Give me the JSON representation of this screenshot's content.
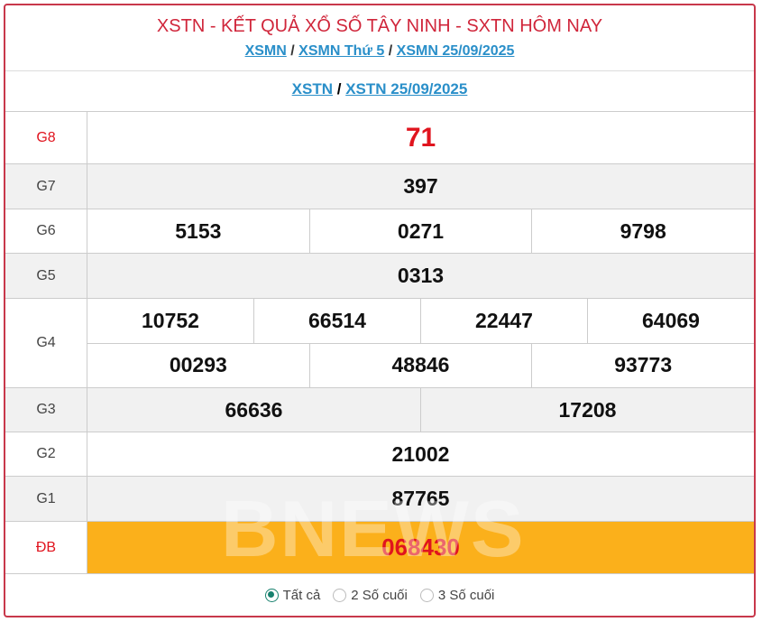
{
  "header": {
    "title": "XSTN - KẾT QUẢ XỔ SỐ TÂY NINH - SXTN HÔM NAY",
    "links": [
      "XSMN",
      "XSMN Thứ 5",
      "XSMN 25/09/2025"
    ],
    "sub_links": [
      "XSTN",
      "XSTN 25/09/2025"
    ],
    "separator": "/"
  },
  "results": {
    "g8": {
      "label": "G8",
      "values": [
        "71"
      ]
    },
    "g7": {
      "label": "G7",
      "values": [
        "397"
      ]
    },
    "g6": {
      "label": "G6",
      "values": [
        "5153",
        "0271",
        "9798"
      ]
    },
    "g5": {
      "label": "G5",
      "values": [
        "0313"
      ]
    },
    "g4": {
      "label": "G4",
      "values": [
        "10752",
        "66514",
        "22447",
        "64069",
        "00293",
        "48846",
        "93773"
      ]
    },
    "g3": {
      "label": "G3",
      "values": [
        "66636",
        "17208"
      ]
    },
    "g2": {
      "label": "G2",
      "values": [
        "21002"
      ]
    },
    "g1": {
      "label": "G1",
      "values": [
        "87765"
      ]
    },
    "db": {
      "label": "ĐB",
      "values": [
        "068430"
      ]
    }
  },
  "watermark": "BNEWS",
  "filter": {
    "options": [
      "Tất cả",
      "2 Số cuối",
      "3 Số cuối"
    ],
    "selected": "Tất cả"
  },
  "colors": {
    "border": "#c8384b",
    "title": "#d0263b",
    "link": "#2a8fc9",
    "special_bg": "#fbb01b",
    "special_text": "#e0141e"
  }
}
